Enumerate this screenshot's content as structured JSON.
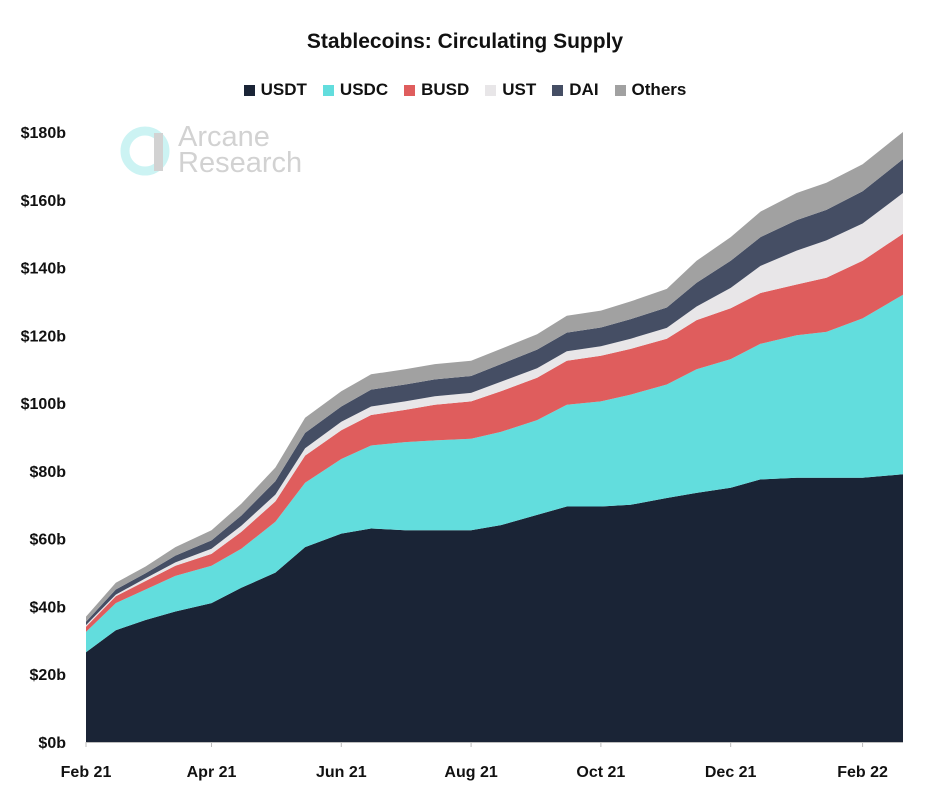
{
  "chart_data": {
    "type": "area",
    "stacked": true,
    "title": "Stablecoins: Circulating Supply",
    "xlabel": "",
    "ylabel": "",
    "ylim": [
      0,
      180
    ],
    "yticks": [
      0,
      20,
      40,
      60,
      80,
      100,
      120,
      140,
      160,
      180
    ],
    "ytick_labels": [
      "$0b",
      "$20b",
      "$40b",
      "$60b",
      "$80b",
      "$100b",
      "$120b",
      "$140b",
      "$160b",
      "$180b"
    ],
    "xlim": [
      "2021-02-01",
      "2022-02-20"
    ],
    "xticks": [
      "2021-02-01",
      "2021-04-01",
      "2021-06-01",
      "2021-08-01",
      "2021-10-01",
      "2021-12-01",
      "2022-02-01"
    ],
    "xtick_labels": [
      "Feb 21",
      "Apr 21",
      "Jun 21",
      "Aug 21",
      "Oct 21",
      "Dec 21",
      "Feb 22"
    ],
    "grid": false,
    "legend_position": "top-center",
    "x": [
      "2021-02-01",
      "2021-02-15",
      "2021-03-01",
      "2021-03-15",
      "2021-04-01",
      "2021-04-15",
      "2021-05-01",
      "2021-05-15",
      "2021-06-01",
      "2021-06-15",
      "2021-07-01",
      "2021-07-15",
      "2021-08-01",
      "2021-08-15",
      "2021-09-01",
      "2021-09-15",
      "2021-10-01",
      "2021-10-15",
      "2021-11-01",
      "2021-11-15",
      "2021-12-01",
      "2021-12-15",
      "2022-01-01",
      "2022-01-15",
      "2022-02-01",
      "2022-02-20"
    ],
    "series": [
      {
        "name": "USDT",
        "color": "#1a2436",
        "values": [
          26.5,
          33,
          36,
          38.5,
          41,
          45.5,
          50,
          57.5,
          61.5,
          63,
          62.5,
          62.5,
          62.5,
          64,
          67,
          69.5,
          69.5,
          70,
          72,
          73.5,
          75,
          77.5,
          78,
          78,
          78,
          79
        ]
      },
      {
        "name": "USDC",
        "color": "#62dddd",
        "values": [
          6,
          8,
          9,
          10.5,
          11,
          11.5,
          15,
          19,
          22,
          24.5,
          26,
          26.5,
          27,
          27.5,
          28,
          30,
          31,
          32.5,
          33.5,
          36.5,
          38,
          40,
          42,
          43,
          47,
          53
        ]
      },
      {
        "name": "BUSD",
        "color": "#df5d5d",
        "values": [
          1.5,
          2,
          2.5,
          3,
          3.5,
          5,
          6,
          8,
          8.5,
          9,
          9.5,
          10.5,
          11,
          12,
          12.5,
          13,
          13.5,
          13.5,
          13.5,
          14.5,
          15,
          15,
          15,
          16,
          17,
          18
        ]
      },
      {
        "name": "UST",
        "color": "#e8e6e8",
        "values": [
          0.5,
          0.5,
          0.8,
          1,
          1.5,
          1.8,
          2,
          2.2,
          2.5,
          2.5,
          2.5,
          2.5,
          2.5,
          2.8,
          2.8,
          2.8,
          2.8,
          3,
          3.2,
          4,
          6,
          8,
          10,
          11,
          11,
          12
        ]
      },
      {
        "name": "DAI",
        "color": "#454e64",
        "values": [
          1,
          1.5,
          1.5,
          2,
          2.5,
          3,
          4,
          4.5,
          4.5,
          5,
          5,
          5,
          5,
          5.2,
          5.5,
          5.5,
          5.5,
          5.8,
          6,
          7,
          8,
          8.5,
          9,
          9,
          9.5,
          10
        ]
      },
      {
        "name": "Others",
        "color": "#a1a1a1",
        "values": [
          1.5,
          2,
          2,
          2.5,
          3,
          3.5,
          4,
          4.5,
          4.5,
          4.5,
          4.5,
          4.5,
          4.5,
          4.5,
          4.5,
          5,
          5,
          5.2,
          5.5,
          6.5,
          7,
          7.5,
          8,
          8,
          8,
          8
        ]
      }
    ]
  },
  "watermark": {
    "line1": "Arcane",
    "line2": "Research"
  }
}
